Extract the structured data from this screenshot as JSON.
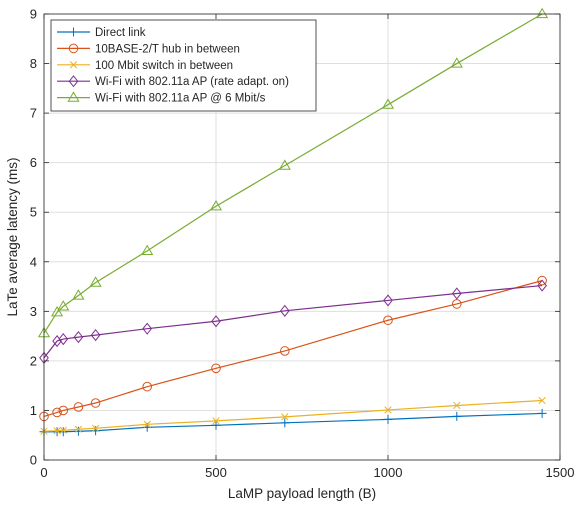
{
  "chart_data": {
    "type": "line",
    "title": "",
    "xlabel": "LaMP payload length (B)",
    "ylabel": "LaTe average latency (ms)",
    "xlim": [
      0,
      1500
    ],
    "ylim": [
      0,
      9
    ],
    "xticks": [
      0,
      500,
      1000,
      1500
    ],
    "yticks": [
      0,
      1,
      2,
      3,
      4,
      5,
      6,
      7,
      8,
      9
    ],
    "grid": true,
    "legend_position": "top-left",
    "series": [
      {
        "name": "Direct link",
        "color": "#0072BD",
        "marker": "plus",
        "x": [
          0,
          38,
          56,
          100,
          150,
          300,
          500,
          700,
          1000,
          1200,
          1448
        ],
        "y": [
          0.57,
          0.57,
          0.57,
          0.58,
          0.59,
          0.66,
          0.7,
          0.75,
          0.82,
          0.88,
          0.94
        ]
      },
      {
        "name": "10BASE-2/T hub in between",
        "color": "#D95319",
        "marker": "circle",
        "x": [
          0,
          38,
          56,
          100,
          150,
          300,
          500,
          700,
          1000,
          1200,
          1448
        ],
        "y": [
          0.88,
          0.96,
          1.0,
          1.07,
          1.15,
          1.48,
          1.85,
          2.2,
          2.82,
          3.15,
          3.62
        ]
      },
      {
        "name": "100 Mbit switch in between",
        "color": "#EDB120",
        "marker": "x",
        "x": [
          0,
          38,
          56,
          100,
          150,
          300,
          500,
          700,
          1000,
          1200,
          1448
        ],
        "y": [
          0.58,
          0.59,
          0.6,
          0.62,
          0.64,
          0.72,
          0.79,
          0.87,
          1.01,
          1.1,
          1.2
        ]
      },
      {
        "name": "Wi-Fi with 802.11a AP (rate adapt. on)",
        "color": "#7E2F8E",
        "marker": "diamond",
        "x": [
          0,
          38,
          56,
          100,
          150,
          300,
          500,
          700,
          1000,
          1200,
          1448
        ],
        "y": [
          2.06,
          2.4,
          2.44,
          2.48,
          2.52,
          2.65,
          2.8,
          3.01,
          3.22,
          3.36,
          3.52
        ]
      },
      {
        "name": "Wi-Fi with 802.11a AP @ 6 Mbit/s",
        "color": "#77AC30",
        "marker": "triangle",
        "x": [
          0,
          38,
          56,
          100,
          150,
          300,
          500,
          700,
          1000,
          1200,
          1448
        ],
        "y": [
          2.56,
          2.98,
          3.1,
          3.32,
          3.58,
          4.22,
          5.12,
          5.94,
          7.17,
          8.0,
          9.0
        ]
      }
    ]
  }
}
